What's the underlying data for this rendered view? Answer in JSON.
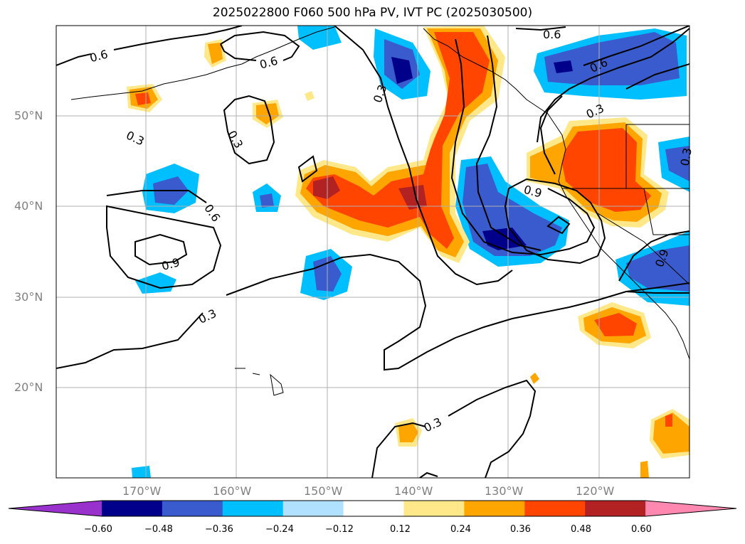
{
  "title": "2025022800 F060 500 hPa PV, IVT PC (2025030500)",
  "lat_labels": [
    "50°N",
    "40°N",
    "30°N",
    "20°N"
  ],
  "lon_labels": [
    "170°W",
    "160°W",
    "150°W",
    "140°W",
    "130°W",
    "120°W"
  ],
  "contour_labels": [
    "0.6",
    "0.6",
    "0.3",
    "0.3",
    "0.6",
    "0.6",
    "0.3",
    "0.9",
    "0.6",
    "0.9",
    "0.3",
    "0.3",
    "0.9",
    "0.3",
    "0.3"
  ],
  "colorbar": {
    "ticks": [
      "−0.60",
      "−0.48",
      "−0.36",
      "−0.24",
      "−0.12",
      "0.12",
      "0.24",
      "0.36",
      "0.48",
      "0.60"
    ],
    "colors": [
      "#9932cc",
      "#00008b",
      "#3a5bcd",
      "#00bfff",
      "#b0e2ff",
      "#ffffff",
      "#ffe88a",
      "#ffa500",
      "#ff4500",
      "#b22222",
      "#ff88b0"
    ]
  },
  "map_extent": {
    "lon_min": -180,
    "lon_max": -110,
    "lat_min": 10,
    "lat_max": 60,
    "grid_lon_step": 10,
    "grid_lat_step": 10
  }
}
